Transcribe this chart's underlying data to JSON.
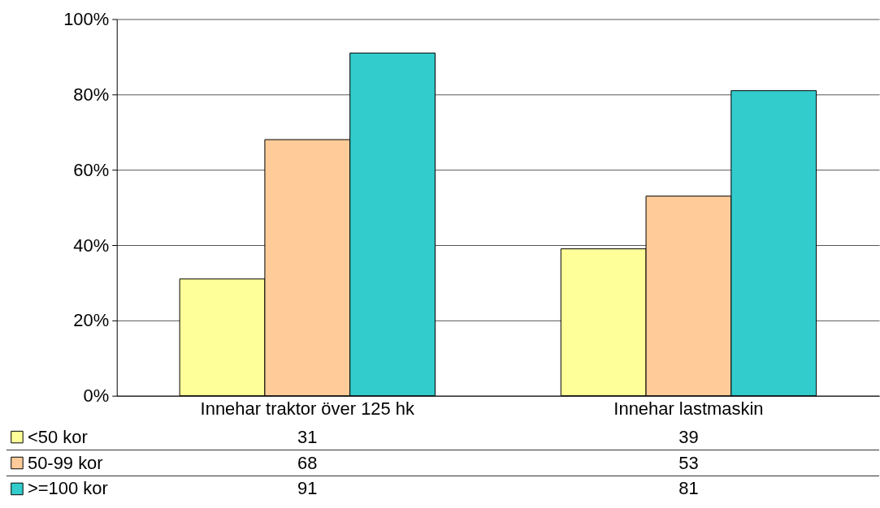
{
  "chart_data": {
    "type": "bar",
    "categories": [
      "Innehar traktor över 125 hk",
      "Innehar lastmaskin"
    ],
    "series": [
      {
        "name": "<50 kor",
        "color": "#ffff99",
        "values": [
          31,
          39
        ]
      },
      {
        "name": "50-99 kor",
        "color": "#ffcc99",
        "values": [
          68,
          53
        ]
      },
      {
        "name": ">=100 kor",
        "color": "#33cccc",
        "values": [
          91,
          81
        ]
      }
    ],
    "ylim": [
      0,
      100
    ],
    "yticks": [
      {
        "value": 0,
        "label": "0%"
      },
      {
        "value": 20,
        "label": "20%"
      },
      {
        "value": 40,
        "label": "40%"
      },
      {
        "value": 60,
        "label": "60%"
      },
      {
        "value": 80,
        "label": "80%"
      },
      {
        "value": 100,
        "label": "100%"
      }
    ],
    "grid": "y",
    "legend": "bottom",
    "data_labels": true
  }
}
